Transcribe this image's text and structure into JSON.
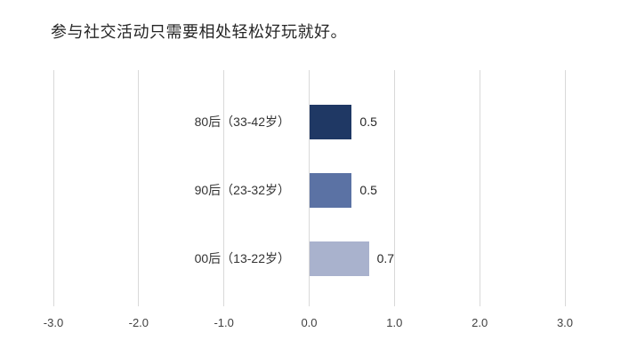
{
  "page": {
    "background_color": "#ffffff"
  },
  "chart_data": {
    "type": "bar",
    "orientation": "horizontal",
    "title": "参与社交活动只需要相处轻松好玩就好。",
    "categories": [
      "80后（33-42岁）",
      "90后（23-32岁）",
      "00后（13-22岁）"
    ],
    "values": [
      0.5,
      0.5,
      0.7
    ],
    "value_labels": [
      "0.5",
      "0.5",
      "0.7"
    ],
    "series": [
      {
        "name": "80后（33-42岁）",
        "value": 0.5
      },
      {
        "name": "90后（23-32岁）",
        "value": 0.5
      },
      {
        "name": "00后（13-22岁）",
        "value": 0.7
      }
    ],
    "bar_colors": [
      "#1F3864",
      "#5B72A4",
      "#A9B2CD"
    ],
    "xlim": [
      -3.0,
      3.0
    ],
    "x_tick_values": [
      -3,
      -2,
      -1,
      0,
      1,
      2,
      3
    ],
    "x_tick_labels": [
      "-3.0",
      "-2.0",
      "-1.0",
      "0.0",
      "1.0",
      "2.0",
      "3.0"
    ],
    "xlabel": "",
    "ylabel": "",
    "grid": true,
    "gridline_color": "#d9d9d9",
    "axis_text_color": "#404040",
    "category_text_color": "#333333",
    "value_text_color": "#262626",
    "title_color": "#262626",
    "legend": "none"
  }
}
